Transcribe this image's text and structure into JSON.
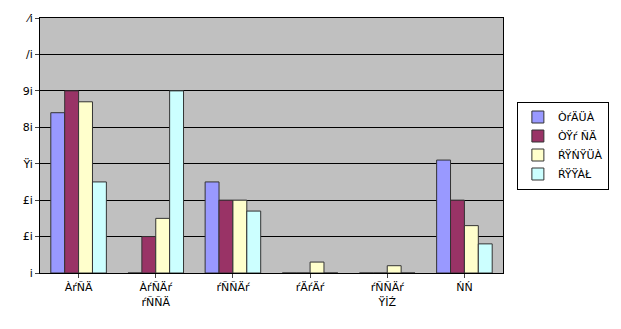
{
  "chart_data": {
    "type": "bar",
    "categories": [
      "ÀŕÑÄ",
      "ÀŕÑÄŕ\nŕÑÑÄ",
      "ŕÑÑÄŕ",
      "ŕÄŕÄŕ",
      "ŕÑÑÄŕ\nŸİŹ",
      "ŃŃ"
    ],
    "series": [
      {
        "name": "ÒŕÄÜÀ",
        "color": "#9999ff",
        "values": [
          44,
          0,
          25,
          0,
          0,
          31
        ]
      },
      {
        "name": "ÒŸŕ ÑÄ",
        "color": "#993366",
        "values": [
          50,
          10,
          20,
          0,
          0,
          20
        ]
      },
      {
        "name": "ŔŸŃŸÜÀ",
        "color": "#ffffcc",
        "values": [
          47,
          15,
          20,
          3,
          2,
          13
        ]
      },
      {
        "name": "ŔŸŸÀŁ",
        "color": "#ccffff",
        "values": [
          25,
          50,
          17,
          0,
          0,
          8
        ]
      }
    ],
    "ylim": [
      0,
      70
    ],
    "yticks": [
      {
        "value": 0,
        "label": "i"
      },
      {
        "value": 10,
        "label": "£i"
      },
      {
        "value": 20,
        "label": "£i"
      },
      {
        "value": 30,
        "label": "Ÿi"
      },
      {
        "value": 40,
        "label": "8i"
      },
      {
        "value": 50,
        "label": "9i"
      },
      {
        "value": 60,
        "label": "/i"
      },
      {
        "value": 70,
        "label": "⁄i"
      }
    ],
    "grid": true,
    "legend": "right"
  }
}
